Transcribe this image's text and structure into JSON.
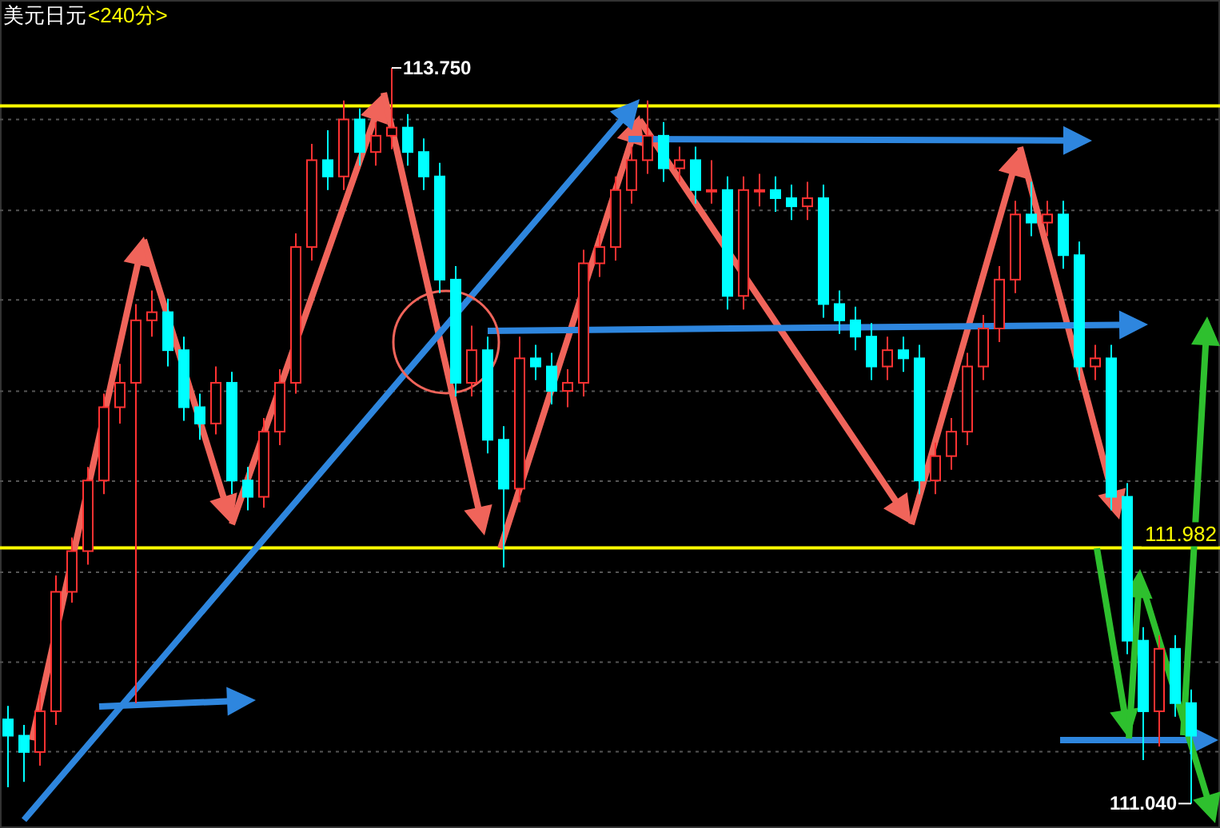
{
  "chart_data": {
    "type": "candlestick",
    "title": "美元日元",
    "subtitle": "<240分>",
    "categories": [
      null,
      null,
      null,
      null,
      null,
      null,
      null,
      null,
      null,
      null,
      null,
      null,
      null,
      null,
      null,
      null,
      null,
      null,
      null,
      null,
      null,
      null,
      null,
      null,
      null,
      null,
      null,
      null,
      null,
      null,
      null,
      null,
      null,
      null,
      null,
      null,
      null,
      null,
      null,
      null,
      null,
      null,
      null,
      null,
      null,
      null,
      null,
      null,
      null,
      null,
      null,
      null,
      null,
      null,
      null,
      null,
      null,
      null,
      null,
      null,
      null,
      null,
      null,
      null,
      null,
      null,
      null,
      null,
      null,
      null,
      null,
      null,
      null,
      null,
      null
    ],
    "ohlc": [
      [
        111.35,
        111.4,
        111.1,
        111.29
      ],
      [
        111.29,
        111.33,
        111.12,
        111.23
      ],
      [
        111.23,
        111.45,
        111.18,
        111.38
      ],
      [
        111.38,
        111.88,
        111.33,
        111.82
      ],
      [
        111.82,
        112.02,
        111.78,
        111.97
      ],
      [
        111.97,
        112.28,
        111.92,
        112.23
      ],
      [
        112.23,
        112.55,
        112.18,
        112.5
      ],
      [
        112.5,
        112.66,
        112.44,
        112.59
      ],
      [
        112.59,
        112.88,
        111.41,
        112.82
      ],
      [
        112.82,
        112.93,
        112.76,
        112.85
      ],
      [
        112.85,
        112.9,
        112.65,
        112.71
      ],
      [
        112.71,
        112.76,
        112.45,
        112.5
      ],
      [
        112.5,
        112.55,
        112.38,
        112.44
      ],
      [
        112.44,
        112.65,
        112.4,
        112.59
      ],
      [
        112.59,
        112.63,
        112.18,
        112.23
      ],
      [
        112.23,
        112.28,
        112.12,
        112.17
      ],
      [
        112.17,
        112.46,
        112.13,
        112.41
      ],
      [
        112.41,
        112.64,
        112.36,
        112.59
      ],
      [
        112.59,
        113.14,
        112.55,
        113.09
      ],
      [
        113.09,
        113.47,
        113.04,
        113.41
      ],
      [
        113.41,
        113.52,
        113.3,
        113.35
      ],
      [
        113.35,
        113.63,
        113.3,
        113.56
      ],
      [
        113.56,
        113.6,
        113.39,
        113.44
      ],
      [
        113.44,
        113.55,
        113.39,
        113.5
      ],
      [
        113.5,
        113.75,
        113.45,
        113.53
      ],
      [
        113.53,
        113.58,
        113.39,
        113.44
      ],
      [
        113.44,
        113.49,
        113.3,
        113.35
      ],
      [
        113.35,
        113.4,
        112.92,
        112.97
      ],
      [
        112.97,
        113.02,
        112.54,
        112.59
      ],
      [
        112.59,
        112.8,
        112.54,
        112.71
      ],
      [
        112.71,
        112.76,
        112.33,
        112.38
      ],
      [
        112.38,
        112.43,
        111.91,
        112.2
      ],
      [
        112.2,
        112.76,
        112.15,
        112.68
      ],
      [
        112.68,
        112.73,
        112.6,
        112.65
      ],
      [
        112.65,
        112.7,
        112.51,
        112.56
      ],
      [
        112.56,
        112.64,
        112.5,
        112.59
      ],
      [
        112.59,
        113.08,
        112.54,
        113.03
      ],
      [
        113.03,
        113.14,
        112.98,
        113.09
      ],
      [
        113.09,
        113.35,
        113.04,
        113.3
      ],
      [
        113.3,
        113.46,
        113.25,
        113.41
      ],
      [
        113.41,
        113.63,
        113.36,
        113.5
      ],
      [
        113.5,
        113.55,
        113.33,
        113.38
      ],
      [
        113.38,
        113.46,
        113.33,
        113.41
      ],
      [
        113.41,
        113.46,
        113.25,
        113.3
      ],
      [
        113.3,
        113.41,
        113.25,
        113.3
      ],
      [
        113.3,
        113.35,
        112.86,
        112.91
      ],
      [
        112.91,
        113.35,
        112.86,
        113.3
      ],
      [
        113.3,
        113.36,
        113.24,
        113.3
      ],
      [
        113.3,
        113.35,
        113.22,
        113.27
      ],
      [
        113.27,
        113.32,
        113.19,
        113.24
      ],
      [
        113.24,
        113.33,
        113.19,
        113.27
      ],
      [
        113.27,
        113.32,
        112.83,
        112.88
      ],
      [
        112.88,
        112.93,
        112.77,
        112.82
      ],
      [
        112.82,
        112.87,
        112.71,
        112.76
      ],
      [
        112.76,
        112.81,
        112.6,
        112.65
      ],
      [
        112.65,
        112.76,
        112.6,
        112.71
      ],
      [
        112.71,
        112.76,
        112.63,
        112.68
      ],
      [
        112.68,
        112.73,
        112.18,
        112.23
      ],
      [
        112.23,
        112.37,
        112.18,
        112.32
      ],
      [
        112.32,
        112.46,
        112.27,
        112.41
      ],
      [
        112.41,
        112.7,
        112.36,
        112.65
      ],
      [
        112.65,
        112.84,
        112.6,
        112.79
      ],
      [
        112.79,
        113.02,
        112.74,
        112.97
      ],
      [
        112.97,
        113.26,
        112.92,
        113.21
      ],
      [
        113.21,
        113.33,
        113.13,
        113.18
      ],
      [
        113.18,
        113.26,
        113.13,
        113.21
      ],
      [
        113.21,
        113.26,
        113.01,
        113.06
      ],
      [
        113.06,
        113.11,
        112.6,
        112.65
      ],
      [
        112.65,
        112.73,
        112.6,
        112.68
      ],
      [
        112.68,
        112.73,
        112.12,
        112.17
      ],
      [
        112.17,
        112.22,
        111.59,
        111.64
      ],
      [
        111.64,
        111.69,
        111.2,
        111.38
      ],
      [
        111.38,
        111.66,
        111.25,
        111.61
      ],
      [
        111.61,
        111.66,
        111.36,
        111.41
      ],
      [
        111.41,
        111.46,
        111.04,
        111.29
      ]
    ],
    "ylim": [
      110.95,
      114.0
    ],
    "yticks": [
      {
        "value": 113.56,
        "label": null
      },
      {
        "value": 113.225,
        "label": null
      },
      {
        "value": 112.895,
        "label": null
      },
      {
        "value": 112.559,
        "label": null
      },
      {
        "value": 112.228,
        "label": null
      },
      {
        "value": 111.892,
        "label": null
      },
      {
        "value": 111.561,
        "label": null
      },
      {
        "value": 111.231,
        "label": null
      }
    ],
    "grid": "y",
    "ref_lines": [
      {
        "axis": "y",
        "value": 111.982,
        "label": "111.982",
        "color": "#ffff00"
      },
      {
        "axis": "y",
        "value": 113.61,
        "color": "#ffff00"
      }
    ],
    "annotations": [
      "113.750",
      "111.040"
    ]
  }
}
